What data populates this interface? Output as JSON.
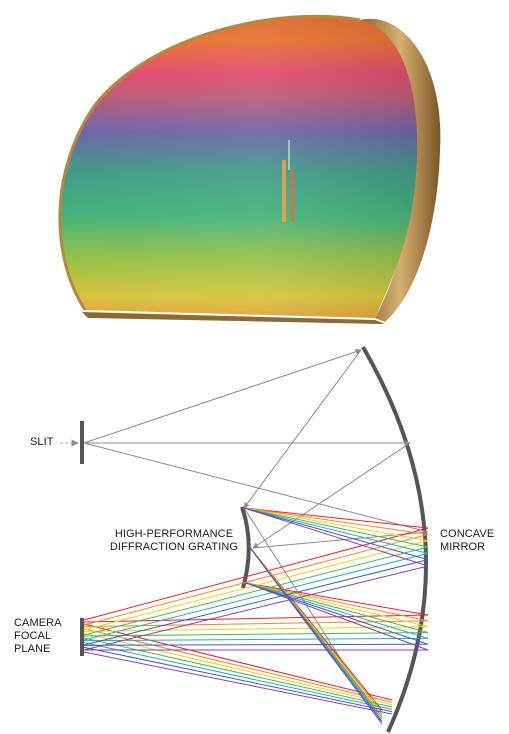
{
  "labels": {
    "slit": "SLIT",
    "grating_line1": "HIGH-PERFORMANCE",
    "grating_line2": "DIFFRACTION GRATING",
    "mirror_line1": "CONCAVE",
    "mirror_line2": "MIRROR",
    "camera_line1": "CAMERA",
    "camera_line2": "FOCAL",
    "camera_line3": "PLANE"
  },
  "colors": {
    "spectrum": [
      "#e8202a",
      "#f08a24",
      "#e6d21e",
      "#4cb848",
      "#2fa7c8",
      "#3b5fc0",
      "#8a3fb0"
    ],
    "mirror": "#555555",
    "input_ray": "#8c8c8c",
    "grating_gold": "#b8873f"
  }
}
